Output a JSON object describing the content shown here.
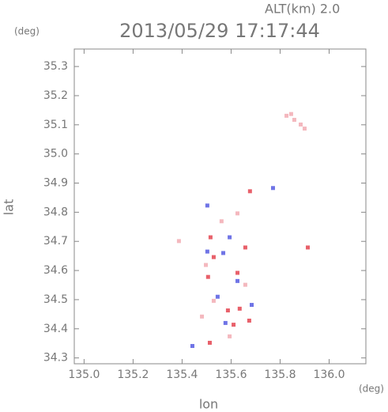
{
  "chart_data": {
    "type": "scatter",
    "title": "2013/05/29 17:17:44",
    "subtitle": "ALT(km) 2.0",
    "y_unit": "(deg)",
    "x_unit": "(deg)",
    "ylabel": "lat",
    "xlabel": "lon",
    "xlim": [
      134.96,
      136.15
    ],
    "ylim": [
      34.28,
      35.36
    ],
    "xticks": [
      {
        "value": 135,
        "label": "135.0"
      },
      135.2,
      135.4,
      135.6,
      135.8,
      {
        "value": 136,
        "label": "136.0"
      }
    ],
    "yticks": [
      34.3,
      34.4,
      34.5,
      34.6,
      34.7,
      34.8,
      34.9,
      {
        "value": 35,
        "label": "35.0"
      },
      35.1,
      35.2,
      35.3
    ],
    "series": [
      {
        "color": "#e8606a",
        "x": [
          135.677,
          135.913,
          135.61,
          135.674,
          135.513,
          135.529,
          135.626,
          135.506,
          135.658,
          135.587,
          135.635,
          135.516
        ],
        "values": [
          34.872,
          34.679,
          34.414,
          34.428,
          34.352,
          34.646,
          34.592,
          34.578,
          34.679,
          34.463,
          34.469,
          34.714
        ]
      },
      {
        "color": "#6f74e6",
        "x": [
          135.684,
          135.577,
          135.568,
          135.503,
          135.626,
          135.545,
          135.503,
          135.771,
          135.442,
          135.594
        ],
        "values": [
          34.482,
          34.42,
          34.66,
          34.665,
          34.564,
          34.51,
          34.823,
          34.883,
          34.341,
          34.714
        ]
      },
      {
        "color": "#f4b8be",
        "x": [
          135.826,
          135.858,
          135.884,
          135.9,
          135.845,
          135.626,
          135.529,
          135.594,
          135.387,
          135.497,
          135.658,
          135.561,
          135.481
        ],
        "values": [
          35.131,
          35.117,
          35.101,
          35.087,
          35.137,
          34.796,
          34.496,
          34.374,
          34.701,
          34.619,
          34.551,
          34.769,
          34.442
        ]
      }
    ]
  }
}
